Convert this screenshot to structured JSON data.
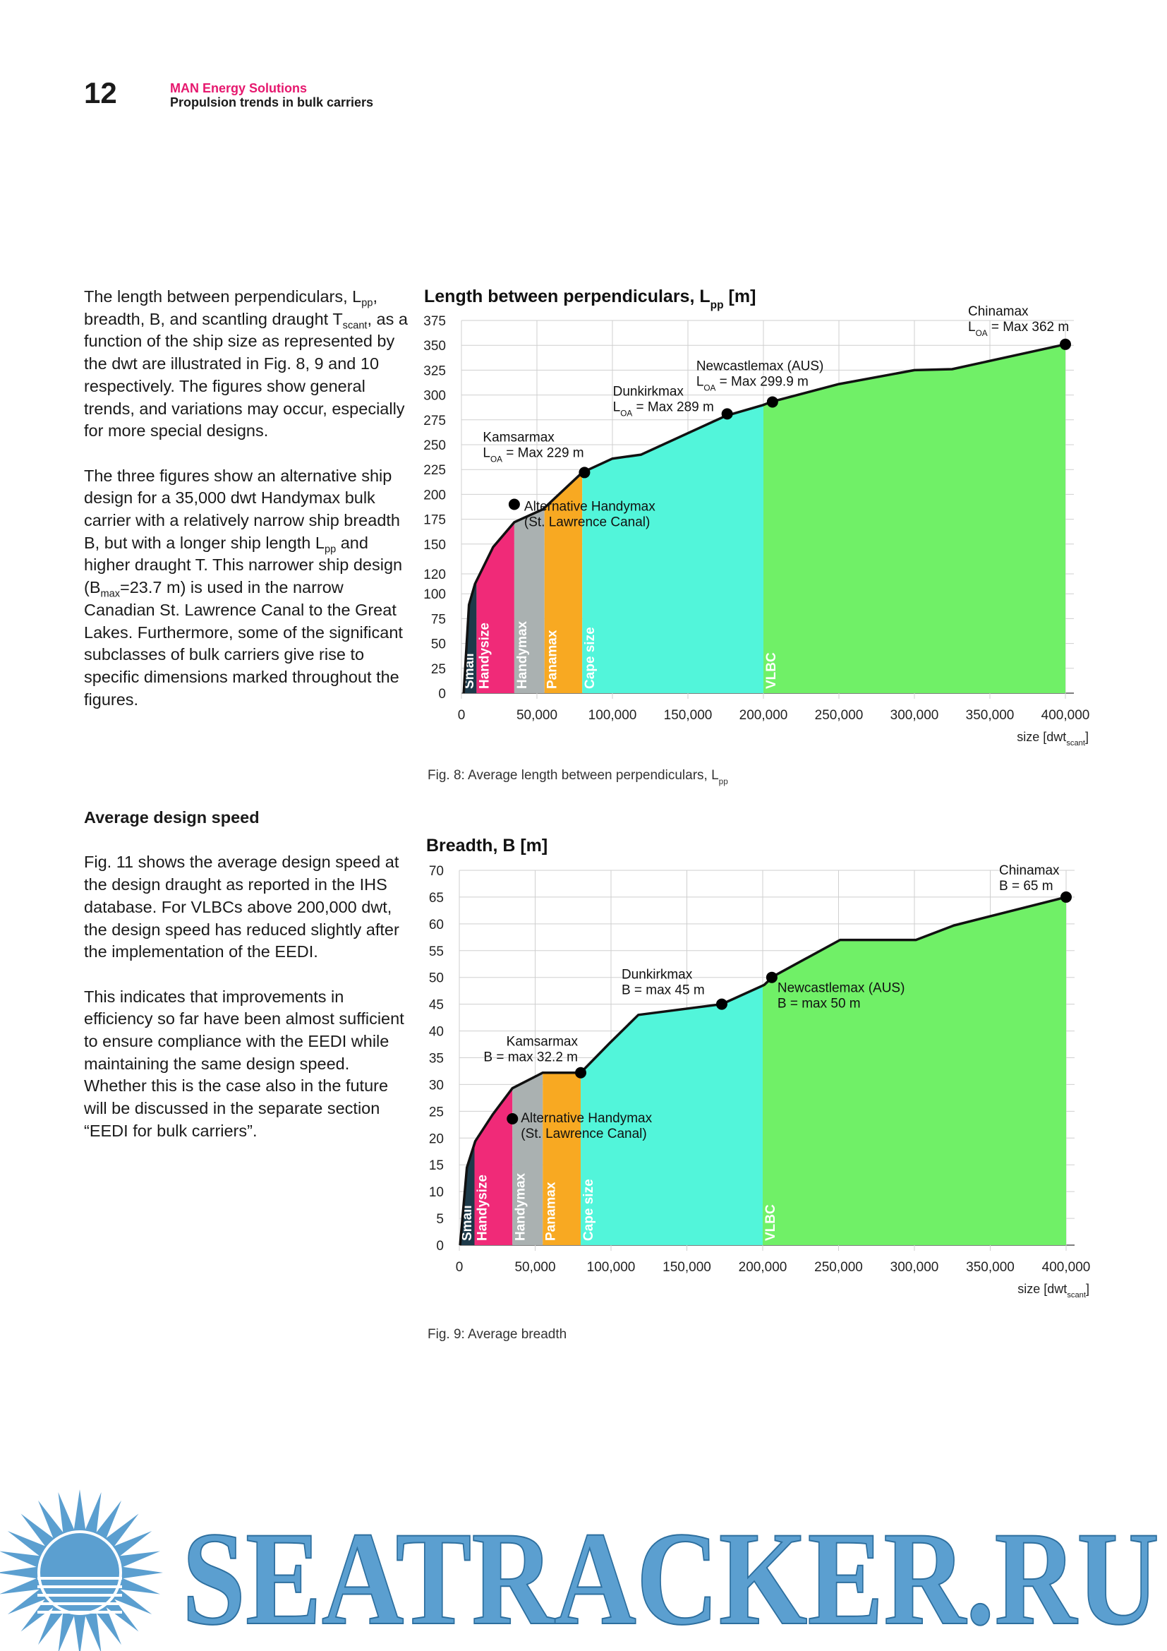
{
  "header": {
    "page_number": "12",
    "brand": "MAN Energy Solutions",
    "subtitle": "Propulsion trends in bulk carriers"
  },
  "body": {
    "paragraphs_top": [
      [
        "The length between perpendiculars, L",
        "pp",
        ", breadth, B, and scantling draught T",
        "scant",
        ", as a function of the ship size as represented by the dwt are illustrated in Fig. 8, 9 and 10 respectively. The figures show general trends, and variations may occur, especially for more special designs."
      ],
      [
        "The three figures show an alternative ship design for a 35,000 dwt Handymax bulk carrier with a relatively narrow ship breadth B, but with a longer ship length L",
        "pp",
        " and higher draught T. This narrower ship design (B",
        "max",
        "=23.7 m) is used in the narrow Canadian St. Lawrence Canal to the Great Lakes. Furthermore, some of the significant subclasses of bulk carriers give rise to specific dimensions marked throughout the figures."
      ]
    ],
    "heading": "Average design speed",
    "paragraphs_bottom": [
      [
        "Fig. 11 shows the average design speed at the design draught as reported in the IHS database. For VLBCs above 200,000 dwt, the design speed has reduced slightly after the implementation of the EEDI."
      ],
      [
        "This indicates that improvements in efficiency so far have been almost sufficient to ensure compliance with the EEDI while maintaining the same design speed. Whether this is the case also in the future will be discussed in the separate section “EEDI for bulk carriers”."
      ]
    ]
  },
  "chart_data": [
    {
      "type": "area",
      "title": [
        "Length between perpendiculars, L",
        "pp",
        " [m]"
      ],
      "x_label": [
        "size [dwt",
        "scant",
        "]"
      ],
      "caption": [
        "Fig. 8: Average length between perpendiculars, L",
        "pp"
      ],
      "x": [
        1500,
        5000,
        9000,
        21000,
        35000,
        54000,
        80000,
        100000,
        119000,
        175000,
        200000,
        205000,
        250000,
        300000,
        325000,
        400000
      ],
      "values": [
        0,
        89,
        110,
        147,
        172,
        185,
        222,
        236,
        240,
        279,
        290,
        293,
        311,
        325,
        326,
        351
      ],
      "color": "#111111",
      "xlim": [
        0,
        400000
      ],
      "ylim": [
        0,
        375
      ],
      "xticks": [
        0,
        {
          "value": 50000,
          "label": "50,000"
        },
        {
          "value": 100000,
          "label": "100,000"
        },
        {
          "value": 150000,
          "label": "150,000"
        },
        {
          "value": 200000,
          "label": "200,000"
        },
        {
          "value": 250000,
          "label": "250,000"
        },
        {
          "value": 300000,
          "label": "300,000"
        },
        {
          "value": 350000,
          "label": "350,000"
        },
        {
          "value": 400000,
          "label": "400,000"
        }
      ],
      "yticks": [
        0,
        25,
        50,
        75,
        100,
        120,
        150,
        175,
        200,
        225,
        250,
        275,
        300,
        325,
        350,
        375
      ],
      "grid": true,
      "bands": [
        {
          "name": "Small",
          "from": 0,
          "to": 10000,
          "color": "#1d3a4a"
        },
        {
          "name": "Handysize",
          "from": 10000,
          "to": 35000,
          "color": "#f02a78"
        },
        {
          "name": "Handymax",
          "from": 35000,
          "to": 55000,
          "color": "#aab1b1"
        },
        {
          "name": "Panamax",
          "from": 55000,
          "to": 80000,
          "color": "#f8a922"
        },
        {
          "name": "Cape size",
          "from": 80000,
          "to": 200000,
          "color": "#52f5da"
        },
        {
          "name": "VLBC",
          "from": 200000,
          "to": 400000,
          "color": "#70f067"
        }
      ],
      "points": [
        {
          "x": 35000,
          "y": 190,
          "label": [
            [
              "Alternative Handymax"
            ],
            [
              "(St. Lawrence Canal)"
            ]
          ]
        },
        {
          "x": 81500,
          "y": 222,
          "label": [
            [
              "Kamsarmax"
            ],
            [
              "L",
              "OA",
              " = Max 229 m"
            ]
          ]
        },
        {
          "x": 176000,
          "y": 281,
          "label": [
            [
              "Dunkirkmax"
            ],
            [
              "L",
              "OA",
              " = Max 289 m"
            ]
          ]
        },
        {
          "x": 206000,
          "y": 293,
          "label": [
            [
              "Newcastlemax (AUS)"
            ],
            [
              "L",
              "OA",
              " = Max 299.9 m"
            ]
          ]
        },
        {
          "x": 400000,
          "y": 351,
          "label": [
            [
              "Chinamax"
            ],
            [
              "L",
              "OA",
              " = Max 362 m"
            ]
          ]
        }
      ]
    },
    {
      "type": "area",
      "title": [
        "Breadth, B [m]"
      ],
      "x_label": [
        "size [dwt",
        "scant",
        "]"
      ],
      "caption": [
        "Fig. 9: Average breadth"
      ],
      "x": [
        500,
        5000,
        10500,
        22000,
        35000,
        55000,
        80000,
        99000,
        118000,
        173000,
        201000,
        207000,
        251000,
        301000,
        326000,
        400000
      ],
      "values": [
        0,
        14.5,
        19.4,
        24.4,
        29.3,
        32.2,
        32.2,
        37.7,
        43,
        45,
        48.6,
        50.2,
        57,
        57,
        59.7,
        65
      ],
      "color": "#111111",
      "xlim": [
        0,
        400000
      ],
      "ylim": [
        0,
        70
      ],
      "xticks": [
        0,
        {
          "value": 50000,
          "label": "50,000"
        },
        {
          "value": 100000,
          "label": "100,000"
        },
        {
          "value": 150000,
          "label": "150,000"
        },
        {
          "value": 200000,
          "label": "200,000"
        },
        {
          "value": 250000,
          "label": "250,000"
        },
        {
          "value": 300000,
          "label": "300,000"
        },
        {
          "value": 350000,
          "label": "350,000"
        },
        {
          "value": 400000,
          "label": "400,000"
        }
      ],
      "yticks": [
        0,
        5,
        10,
        15,
        20,
        25,
        30,
        35,
        40,
        45,
        50,
        55,
        60,
        65,
        70
      ],
      "grid": true,
      "bands": [
        {
          "name": "Small",
          "from": 0,
          "to": 10000,
          "color": "#1d3a4a"
        },
        {
          "name": "Handysize",
          "from": 10000,
          "to": 35000,
          "color": "#f02a78"
        },
        {
          "name": "Handymax",
          "from": 35000,
          "to": 55000,
          "color": "#aab1b1"
        },
        {
          "name": "Panamax",
          "from": 55000,
          "to": 80000,
          "color": "#f8a922"
        },
        {
          "name": "Cape size",
          "from": 80000,
          "to": 200000,
          "color": "#52f5da"
        },
        {
          "name": "VLBC",
          "from": 200000,
          "to": 400000,
          "color": "#70f067"
        }
      ],
      "points": [
        {
          "x": 35000,
          "y": 23.6,
          "label": [
            [
              "Alternative Handymax"
            ],
            [
              "(St. Lawrence Canal)"
            ]
          ]
        },
        {
          "x": 80000,
          "y": 32.2,
          "label": [
            [
              "Kamsarmax"
            ],
            [
              "B = max 32.2 m"
            ]
          ]
        },
        {
          "x": 173000,
          "y": 45,
          "label": [
            [
              "Dunkirkmax"
            ],
            [
              "B = max 45 m"
            ]
          ]
        },
        {
          "x": 206000,
          "y": 50,
          "label": [
            [
              "Newcastlemax (AUS)"
            ],
            [
              "B = max 50 m"
            ]
          ]
        },
        {
          "x": 400000,
          "y": 65,
          "label": [
            [
              "Chinamax"
            ],
            [
              "B = 65 m"
            ]
          ]
        }
      ]
    }
  ],
  "watermark": "SEATRACKER.RU"
}
